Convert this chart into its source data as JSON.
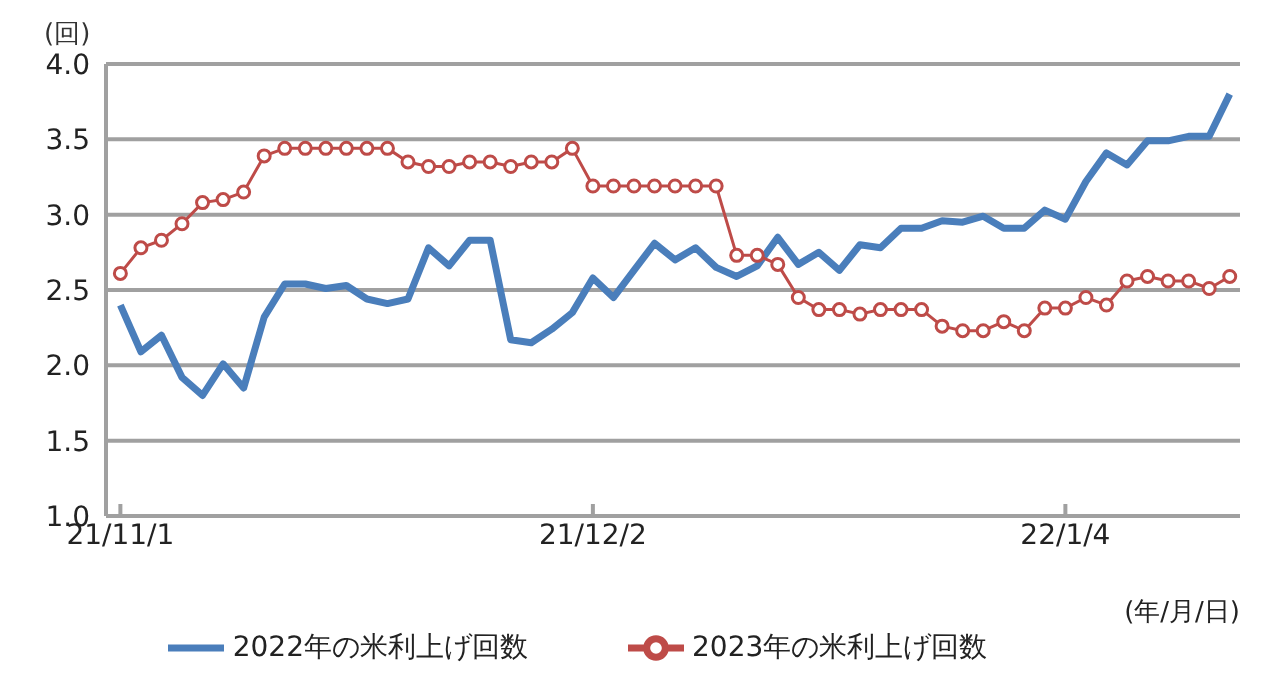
{
  "chart_data": {
    "type": "line",
    "ylabel": "(回)",
    "xlabel": "(年/月/日)",
    "categories": [
      "21/11/1",
      null,
      null,
      null,
      null,
      null,
      null,
      null,
      null,
      null,
      null,
      null,
      null,
      null,
      null,
      null,
      null,
      null,
      null,
      null,
      null,
      null,
      null,
      "21/12/2",
      null,
      null,
      null,
      null,
      null,
      null,
      null,
      null,
      null,
      null,
      null,
      null,
      null,
      null,
      null,
      null,
      null,
      null,
      null,
      null,
      null,
      null,
      "22/1/4",
      null,
      null,
      null,
      null,
      null,
      null,
      null,
      null
    ],
    "series": [
      {
        "name": "2022年の米利上げ回数",
        "color": "#4a7ebb",
        "marker": "none",
        "values": [
          2.4,
          2.09,
          2.2,
          1.92,
          1.8,
          2.01,
          1.85,
          2.32,
          2.54,
          2.54,
          2.51,
          2.53,
          2.44,
          2.41,
          2.44,
          2.78,
          2.66,
          2.83,
          2.83,
          2.17,
          2.15,
          2.24,
          2.35,
          2.58,
          2.45,
          2.63,
          2.81,
          2.7,
          2.78,
          2.65,
          2.59,
          2.66,
          2.85,
          2.67,
          2.75,
          2.63,
          2.8,
          2.78,
          2.91,
          2.91,
          2.96,
          2.95,
          2.99,
          2.91,
          2.91,
          3.03,
          2.97,
          3.22,
          3.41,
          3.33,
          3.49,
          3.49,
          3.52,
          3.52,
          3.8
        ]
      },
      {
        "name": "2023年の米利上げ回数",
        "color": "#be4b48",
        "marker": "circle",
        "values": [
          2.61,
          2.78,
          2.83,
          2.94,
          3.08,
          3.1,
          3.15,
          3.39,
          3.44,
          3.44,
          3.44,
          3.44,
          3.44,
          3.44,
          3.35,
          3.32,
          3.32,
          3.35,
          3.35,
          3.32,
          3.35,
          3.35,
          3.44,
          3.19,
          3.19,
          3.19,
          3.19,
          3.19,
          3.19,
          3.19,
          2.73,
          2.73,
          2.67,
          2.45,
          2.37,
          2.37,
          2.34,
          2.37,
          2.37,
          2.37,
          2.26,
          2.23,
          2.23,
          2.29,
          2.23,
          2.38,
          2.38,
          2.45,
          2.4,
          2.56,
          2.59,
          2.56,
          2.56,
          2.51,
          2.59
        ]
      }
    ],
    "ylim": [
      1.0,
      4.0
    ],
    "yticks": [
      {
        "value": 1.0,
        "label": "1.0"
      },
      {
        "value": 1.5,
        "label": "1.5"
      },
      {
        "value": 2.0,
        "label": "2.0"
      },
      {
        "value": 2.5,
        "label": "2.5"
      },
      {
        "value": 3.0,
        "label": "3.0"
      },
      {
        "value": 3.5,
        "label": "3.5"
      },
      {
        "value": 4.0,
        "label": "4.0"
      }
    ],
    "grid": "y",
    "legend": "bottom"
  }
}
